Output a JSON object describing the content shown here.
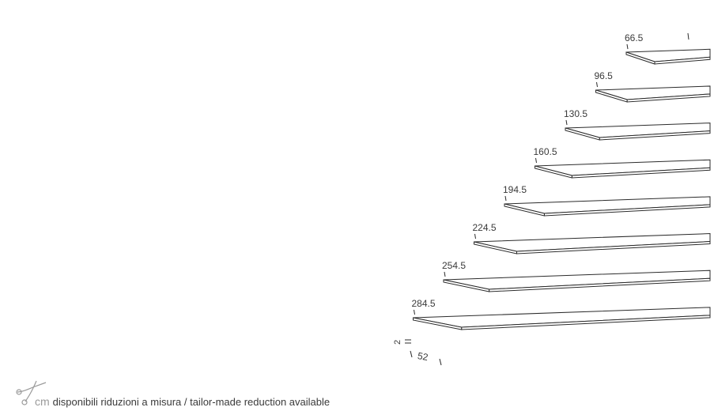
{
  "planks": [
    {
      "length": "66.5"
    },
    {
      "length": "96.5"
    },
    {
      "length": "130.5"
    },
    {
      "length": "160.5"
    },
    {
      "length": "194.5"
    },
    {
      "length": "224.5"
    },
    {
      "length": "254.5"
    },
    {
      "length": "284.5"
    }
  ],
  "depth": "52",
  "thickness": "2",
  "footer": {
    "unit": "cm",
    "text": "disponibili riduzioni a misura / tailor-made reduction available"
  },
  "icons": {
    "scissors": "scissors-icon"
  }
}
